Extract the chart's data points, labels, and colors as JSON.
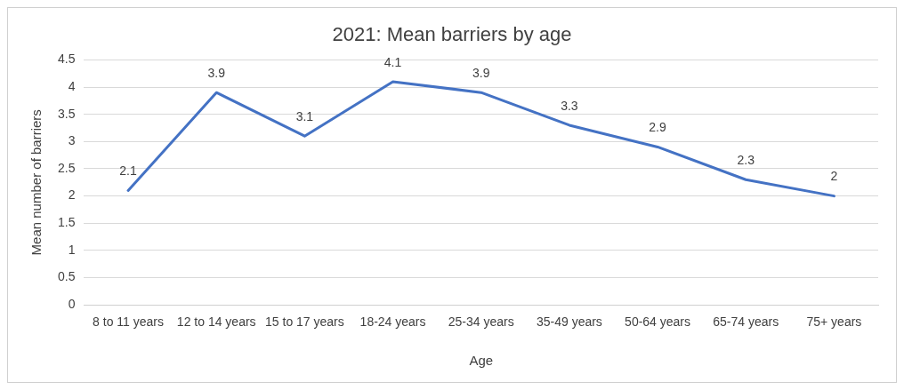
{
  "chart_data": {
    "type": "line",
    "title": "2021: Mean barriers by age",
    "xlabel": "Age",
    "ylabel": "Mean number of barriers",
    "categories": [
      "8 to 11 years",
      "12 to 14 years",
      "15 to 17 years",
      "18-24 years",
      "25-34 years",
      "35-49 years",
      "50-64 years",
      "65-74 years",
      "75+ years"
    ],
    "series": [
      {
        "color": "#4472c4",
        "values": [
          2.1,
          3.9,
          3.1,
          4.1,
          3.9,
          3.3,
          2.9,
          2.3,
          2
        ]
      }
    ],
    "ylim": [
      0,
      4.5
    ],
    "yticks": [
      0,
      0.5,
      1,
      1.5,
      2,
      2.5,
      3,
      3.5,
      4,
      4.5
    ],
    "grid": "y",
    "data_labels": true,
    "marker": "none",
    "line_style": "solid"
  }
}
